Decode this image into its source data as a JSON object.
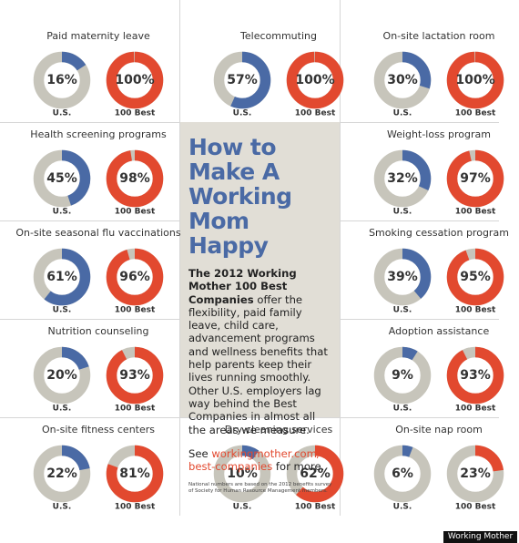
{
  "chart_data": [
    {
      "type": "donut",
      "title": "Paid maternity leave",
      "categories": [
        "U.S.",
        "100 Best"
      ],
      "values": [
        16,
        100
      ],
      "value_labels": [
        "16%",
        "100%"
      ],
      "colors": [
        "#4a6aa5",
        "#e2492f"
      ],
      "track_color": "#c7c5bb"
    },
    {
      "type": "donut",
      "title": "Telecommuting",
      "categories": [
        "U.S.",
        "100 Best"
      ],
      "values": [
        57,
        100
      ],
      "value_labels": [
        "57%",
        "100%"
      ],
      "colors": [
        "#4a6aa5",
        "#e2492f"
      ],
      "track_color": "#c7c5bb"
    },
    {
      "type": "donut",
      "title": "On-site lactation room",
      "categories": [
        "U.S.",
        "100 Best"
      ],
      "values": [
        30,
        100
      ],
      "value_labels": [
        "30%",
        "100%"
      ],
      "colors": [
        "#4a6aa5",
        "#e2492f"
      ],
      "track_color": "#c7c5bb"
    },
    {
      "type": "donut",
      "title": "Health screening programs",
      "categories": [
        "U.S.",
        "100 Best"
      ],
      "values": [
        45,
        98
      ],
      "value_labels": [
        "45%",
        "98%"
      ],
      "colors": [
        "#4a6aa5",
        "#e2492f"
      ],
      "track_color": "#c7c5bb"
    },
    {
      "type": "donut",
      "title": "Weight-loss program",
      "categories": [
        "U.S.",
        "100 Best"
      ],
      "values": [
        32,
        97
      ],
      "value_labels": [
        "32%",
        "97%"
      ],
      "colors": [
        "#4a6aa5",
        "#e2492f"
      ],
      "track_color": "#c7c5bb"
    },
    {
      "type": "donut",
      "title": "On-site seasonal flu vaccinations",
      "categories": [
        "U.S.",
        "100 Best"
      ],
      "values": [
        61,
        96
      ],
      "value_labels": [
        "61%",
        "96%"
      ],
      "colors": [
        "#4a6aa5",
        "#e2492f"
      ],
      "track_color": "#c7c5bb"
    },
    {
      "type": "donut",
      "title": "Smoking cessation program",
      "categories": [
        "U.S.",
        "100 Best"
      ],
      "values": [
        39,
        95
      ],
      "value_labels": [
        "39%",
        "95%"
      ],
      "colors": [
        "#4a6aa5",
        "#e2492f"
      ],
      "track_color": "#c7c5bb"
    },
    {
      "type": "donut",
      "title": "Nutrition counseling",
      "categories": [
        "U.S.",
        "100 Best"
      ],
      "values": [
        20,
        93
      ],
      "value_labels": [
        "20%",
        "93%"
      ],
      "colors": [
        "#4a6aa5",
        "#e2492f"
      ],
      "track_color": "#c7c5bb"
    },
    {
      "type": "donut",
      "title": "Adoption assistance",
      "categories": [
        "U.S.",
        "100 Best"
      ],
      "values": [
        9,
        93
      ],
      "value_labels": [
        "9%",
        "93%"
      ],
      "colors": [
        "#4a6aa5",
        "#e2492f"
      ],
      "track_color": "#c7c5bb"
    },
    {
      "type": "donut",
      "title": "On-site fitness centers",
      "categories": [
        "U.S.",
        "100 Best"
      ],
      "values": [
        22,
        81
      ],
      "value_labels": [
        "22%",
        "81%"
      ],
      "colors": [
        "#4a6aa5",
        "#e2492f"
      ],
      "track_color": "#c7c5bb"
    },
    {
      "type": "donut",
      "title": "Dry-cleaning services",
      "categories": [
        "U.S.",
        "100 Best"
      ],
      "values": [
        10,
        62
      ],
      "value_labels": [
        "10%",
        "62%"
      ],
      "colors": [
        "#4a6aa5",
        "#e2492f"
      ],
      "track_color": "#c7c5bb"
    },
    {
      "type": "donut",
      "title": "On-site nap room",
      "categories": [
        "U.S.",
        "100 Best"
      ],
      "values": [
        6,
        23
      ],
      "value_labels": [
        "6%",
        "23%"
      ],
      "colors": [
        "#4a6aa5",
        "#e2492f"
      ],
      "track_color": "#c7c5bb"
    }
  ],
  "panel": {
    "title": "How to Make A Working Mom Happy",
    "lead": "The 2012 Working Mother 100 Best Companies",
    "body": "offer the flexibility, paid family leave, child care, advancement programs and wellness benefits that help parents keep their lives running smoothly. Other U.S. employers lag way behind the Best Companies in almost all the areas we measure.",
    "see": "See",
    "link": "workingmother.com/ best-companies",
    "more": "for more.",
    "footnote": "National numbers are based on the 2012 benefits survey of Society for Human Resource Management members."
  },
  "credit": "Working Mother"
}
